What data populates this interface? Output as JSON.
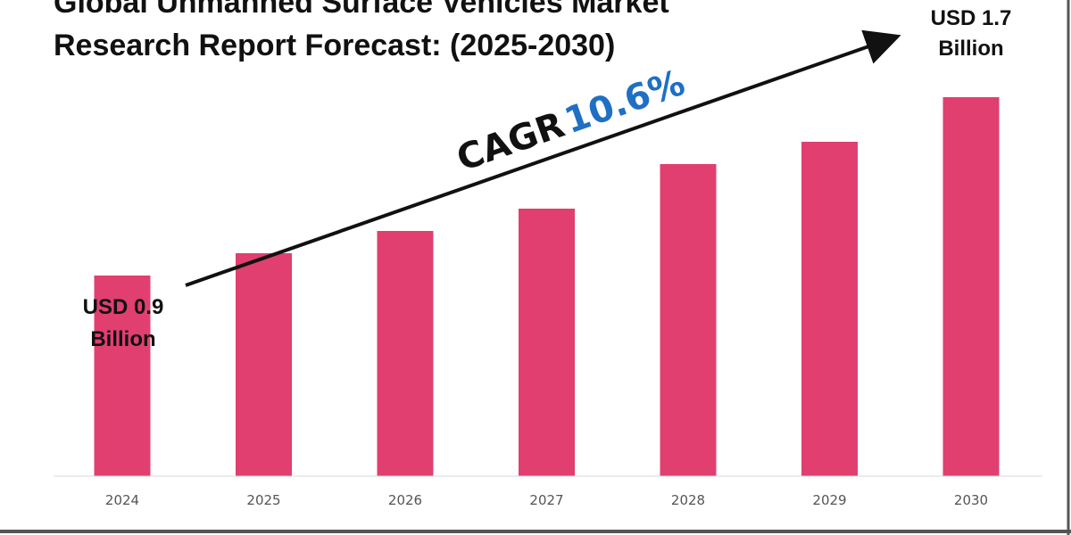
{
  "title_lines": [
    "Global Unmanned Surface Vehicles Market",
    "Research Report Forecast: (2025-2030)"
  ],
  "colors": {
    "bar": "#e03f70",
    "cagr_value": "#1f6fc4",
    "text": "#111111",
    "tick": "#555555",
    "frame": "#555555"
  },
  "annotations": {
    "start": {
      "line1": "USD 0.9",
      "line2": "Billion"
    },
    "end": {
      "line1": "USD 1.7",
      "line2": "Billion"
    },
    "cagr_label": "CAGR",
    "cagr_value": "10.6%"
  },
  "chart_data": {
    "type": "bar",
    "categories": [
      "2024",
      "2025",
      "2026",
      "2027",
      "2028",
      "2029",
      "2030"
    ],
    "values": [
      0.9,
      1.0,
      1.1,
      1.2,
      1.4,
      1.5,
      1.7
    ],
    "ylim": [
      0,
      2
    ],
    "grid": false,
    "legend": "none"
  }
}
